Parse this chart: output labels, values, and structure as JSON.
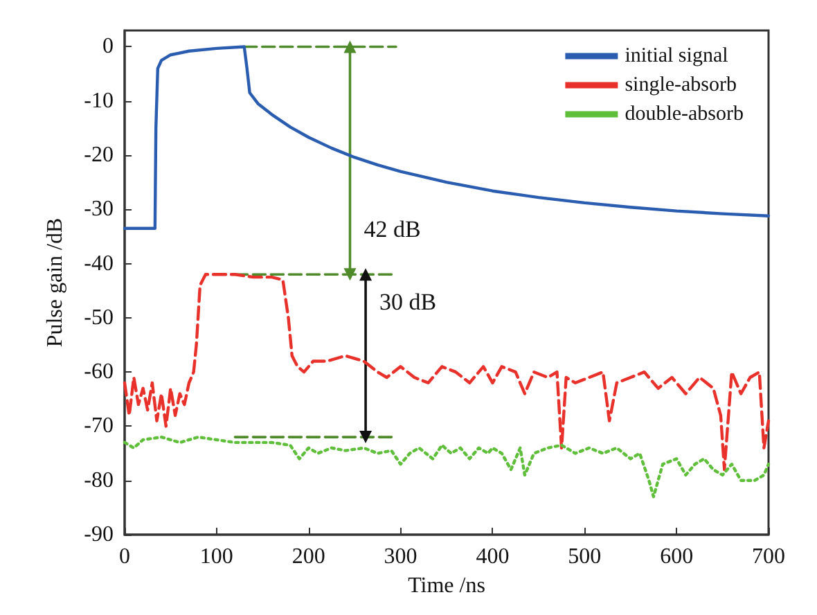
{
  "chart_data": {
    "type": "line",
    "xlabel": "Time /ns",
    "ylabel": "Pulse gain /dB",
    "xlim": [
      0,
      700
    ],
    "ylim": [
      -90,
      3
    ],
    "xticks": [
      0,
      100,
      200,
      300,
      400,
      500,
      600,
      700
    ],
    "yticks": [
      -90,
      -80,
      -70,
      -60,
      -50,
      -40,
      -30,
      -20,
      -10,
      0
    ],
    "grid": false,
    "legend": "top right",
    "marker": "none",
    "annotations": [
      "42 dB",
      "30 dB"
    ],
    "series": [
      {
        "name": "initial signal",
        "color": "#2a5db0",
        "line_style": "solid",
        "x": [
          0,
          33,
          34,
          36,
          40,
          50,
          70,
          100,
          130,
          133,
          136,
          145,
          160,
          180,
          200,
          225,
          250,
          275,
          300,
          350,
          400,
          450,
          500,
          550,
          600,
          650,
          700
        ],
        "values": [
          -33.5,
          -33.5,
          -15,
          -4,
          -2.5,
          -1.5,
          -0.8,
          -0.3,
          0,
          -4,
          -8.5,
          -10.5,
          -12.5,
          -14.8,
          -16.7,
          -18.7,
          -20.4,
          -21.8,
          -23,
          -25,
          -26.6,
          -27.8,
          -28.8,
          -29.6,
          -30.3,
          -30.8,
          -31.2
        ]
      },
      {
        "name": "single-absorb",
        "color": "#e8312a",
        "line_style": "dashed",
        "x": [
          0,
          5,
          10,
          15,
          20,
          25,
          30,
          35,
          40,
          45,
          50,
          55,
          60,
          65,
          70,
          75,
          78,
          82,
          88,
          100,
          120,
          140,
          160,
          172,
          178,
          182,
          188,
          195,
          205,
          220,
          240,
          260,
          275,
          285,
          300,
          315,
          330,
          345,
          360,
          375,
          390,
          400,
          410,
          425,
          435,
          445,
          460,
          470,
          475,
          480,
          490,
          505,
          520,
          527,
          535,
          550,
          565,
          580,
          595,
          610,
          625,
          640,
          648,
          652,
          660,
          670,
          680,
          690,
          695,
          700
        ],
        "values": [
          -62,
          -68,
          -61,
          -66,
          -63,
          -67,
          -62,
          -69,
          -64,
          -70,
          -63,
          -68,
          -64,
          -66,
          -62,
          -60,
          -55,
          -44,
          -42,
          -42,
          -42,
          -42.5,
          -42.5,
          -43,
          -50,
          -57,
          -59,
          -60,
          -58,
          -58,
          -57,
          -58,
          -60,
          -61,
          -59,
          -61,
          -62,
          -59,
          -60,
          -62,
          -59,
          -62,
          -59,
          -60,
          -64,
          -60,
          -61,
          -60,
          -74,
          -61,
          -62,
          -61,
          -60,
          -69,
          -62,
          -61,
          -60,
          -63,
          -61,
          -64,
          -61,
          -63,
          -68,
          -78,
          -60,
          -64,
          -61,
          -60,
          -74,
          -69
        ]
      },
      {
        "name": "double-absorb",
        "color": "#5fbf3a",
        "line_style": "dotted",
        "x": [
          0,
          10,
          20,
          40,
          60,
          80,
          100,
          120,
          140,
          160,
          180,
          190,
          200,
          210,
          225,
          240,
          260,
          275,
          290,
          300,
          310,
          320,
          335,
          345,
          355,
          365,
          375,
          385,
          395,
          400,
          410,
          420,
          430,
          435,
          445,
          460,
          475,
          490,
          505,
          520,
          535,
          550,
          560,
          570,
          575,
          585,
          600,
          610,
          620,
          630,
          640,
          650,
          660,
          670,
          685,
          695,
          700
        ],
        "values": [
          -73,
          -74,
          -72.5,
          -72,
          -73,
          -72,
          -72.5,
          -73,
          -73,
          -73,
          -73.5,
          -76,
          -74,
          -75,
          -74,
          -74.5,
          -74,
          -75,
          -74.5,
          -77,
          -75,
          -74,
          -76,
          -73.5,
          -75,
          -74,
          -76,
          -74,
          -75,
          -74,
          -75,
          -78,
          -74,
          -79,
          -75,
          -74,
          -73.5,
          -75,
          -74,
          -75,
          -74,
          -76,
          -75,
          -80,
          -83,
          -77,
          -76,
          -79,
          -77,
          -76,
          -78,
          -79,
          -77,
          -80,
          -80,
          -79,
          -77
        ]
      },
      {
        "color": "#4f8a2b",
        "line_style": "dashed",
        "marker": "none",
        "x": [
          130,
          295
        ],
        "values": [
          0,
          0
        ]
      },
      {
        "color": "#4f8a2b",
        "line_style": "dashed",
        "marker": "none",
        "x": [
          120,
          295
        ],
        "values": [
          -42,
          -42
        ]
      },
      {
        "color": "#4f8a2b",
        "line_style": "dashed",
        "marker": "none",
        "x": [
          120,
          295
        ],
        "values": [
          -72,
          -72
        ]
      },
      {
        "color": "#4f8a2b",
        "line_style": "solid",
        "marker": "triangle",
        "x": [
          245,
          245
        ],
        "values": [
          0,
          -42
        ]
      },
      {
        "color": "#111111",
        "line_style": "solid",
        "marker": "triangle",
        "x": [
          262,
          262
        ],
        "values": [
          -42,
          -72
        ]
      }
    ]
  }
}
